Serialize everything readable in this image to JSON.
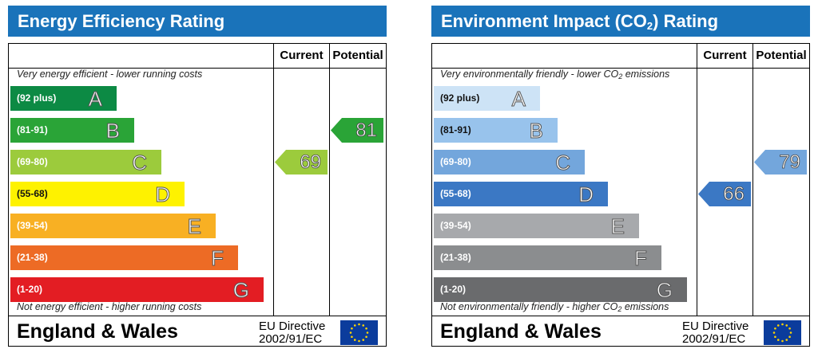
{
  "charts": [
    {
      "id": "energy",
      "title": "Energy Efficiency Rating",
      "columns": {
        "current": "Current",
        "potential": "Potential"
      },
      "top_note": "Very energy efficient - lower running costs",
      "bottom_note": "Not energy efficient - higher running costs",
      "bands": [
        {
          "range": "(92 plus)",
          "letter": "A",
          "color": "#0c8a44"
        },
        {
          "range": "(81-91)",
          "letter": "B",
          "color": "#2aa437"
        },
        {
          "range": "(69-80)",
          "letter": "C",
          "color": "#9ccb3c"
        },
        {
          "range": "(55-68)",
          "letter": "D",
          "color": "#fef200"
        },
        {
          "range": "(39-54)",
          "letter": "E",
          "color": "#f8b023"
        },
        {
          "range": "(21-38)",
          "letter": "F",
          "color": "#ed6b25"
        },
        {
          "range": "(1-20)",
          "letter": "G",
          "color": "#e31d23"
        }
      ],
      "current": {
        "value": 69,
        "band": "C",
        "color": "#9ccb3c"
      },
      "potential": {
        "value": 81,
        "band": "B",
        "color": "#2aa437"
      },
      "footer": {
        "region": "England & Wales",
        "directive_line1": "EU Directive",
        "directive_line2": "2002/91/EC"
      }
    },
    {
      "id": "env",
      "title_pre": "Environment Impact (CO",
      "title_sub": "2",
      "title_post": ") Rating",
      "columns": {
        "current": "Current",
        "potential": "Potential"
      },
      "top_note_pre": "Very environmentally friendly - lower CO",
      "top_note_sub": "2",
      "top_note_post": " emissions",
      "bottom_note_pre": "Not environmentally friendly - higher CO",
      "bottom_note_sub": "2",
      "bottom_note_post": " emissions",
      "bands": [
        {
          "range": "(92 plus)",
          "letter": "A",
          "color": "#cde3f6"
        },
        {
          "range": "(81-91)",
          "letter": "B",
          "color": "#98c3ec"
        },
        {
          "range": "(69-80)",
          "letter": "C",
          "color": "#73a6dc"
        },
        {
          "range": "(55-68)",
          "letter": "D",
          "color": "#3b78c4"
        },
        {
          "range": "(39-54)",
          "letter": "E",
          "color": "#a7a9ac"
        },
        {
          "range": "(21-38)",
          "letter": "F",
          "color": "#8b8d8f"
        },
        {
          "range": "(1-20)",
          "letter": "G",
          "color": "#6a6b6d"
        }
      ],
      "current": {
        "value": 66,
        "band": "D",
        "color": "#3b78c4"
      },
      "potential": {
        "value": 79,
        "band": "C",
        "color": "#73a6dc"
      },
      "footer": {
        "region": "England & Wales",
        "directive_line1": "EU Directive",
        "directive_line2": "2002/91/EC"
      }
    }
  ]
}
